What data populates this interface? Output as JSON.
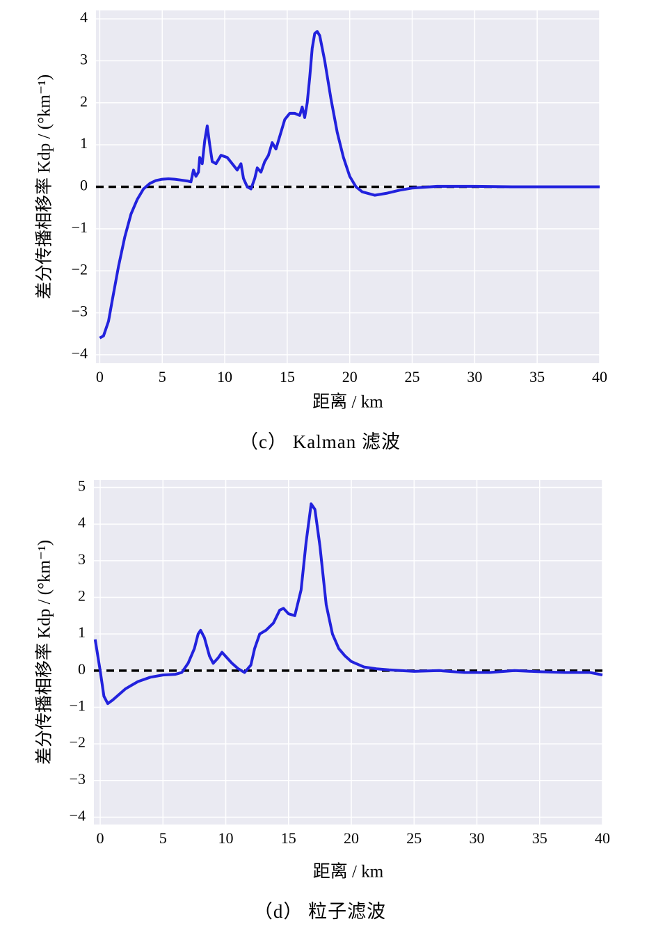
{
  "chart_data": [
    {
      "type": "line",
      "caption": "（c） Kalman 滤波",
      "xlabel": "距离 / km",
      "ylabel": "差分传播相移率 Kdp / (°km⁻¹)",
      "xlim": [
        -0.3,
        40
      ],
      "ylim": [
        -4.2,
        4.2
      ],
      "xticks": [
        0,
        5,
        10,
        15,
        20,
        25,
        30,
        35,
        40
      ],
      "yticks": [
        {
          "value": -4,
          "label": "−4"
        },
        {
          "value": -3,
          "label": "−3"
        },
        {
          "value": -2,
          "label": "−2"
        },
        {
          "value": -1,
          "label": "−1"
        },
        0,
        1,
        2,
        3,
        4
      ],
      "grid": true,
      "background": "#eaeaf2",
      "color": "#2222dd",
      "reference_line": {
        "value": 0,
        "style": "dashed",
        "color": "#000000"
      },
      "x": [
        0,
        0.3,
        0.7,
        1,
        1.5,
        2,
        2.5,
        3,
        3.5,
        4,
        4.5,
        5,
        5.5,
        6,
        6.5,
        7,
        7.3,
        7.5,
        7.7,
        7.9,
        8.0,
        8.2,
        8.4,
        8.6,
        8.8,
        9.0,
        9.3,
        9.7,
        10.2,
        10.6,
        11,
        11.3,
        11.5,
        11.8,
        12.1,
        12.4,
        12.6,
        12.9,
        13.2,
        13.5,
        13.8,
        14.1,
        14.4,
        14.8,
        15.2,
        15.6,
        16,
        16.2,
        16.4,
        16.6,
        16.8,
        17.0,
        17.2,
        17.4,
        17.6,
        18,
        18.5,
        19,
        19.5,
        20,
        20.5,
        21,
        22,
        23,
        24,
        25,
        27,
        30,
        33,
        36,
        40
      ],
      "values": [
        -3.6,
        -3.55,
        -3.2,
        -2.7,
        -1.9,
        -1.2,
        -0.65,
        -0.3,
        -0.05,
        0.08,
        0.15,
        0.18,
        0.19,
        0.18,
        0.16,
        0.14,
        0.12,
        0.4,
        0.25,
        0.35,
        0.7,
        0.55,
        1.1,
        1.45,
        1.0,
        0.6,
        0.55,
        0.75,
        0.7,
        0.55,
        0.4,
        0.55,
        0.2,
        0.0,
        -0.05,
        0.2,
        0.45,
        0.35,
        0.6,
        0.75,
        1.05,
        0.9,
        1.2,
        1.6,
        1.75,
        1.75,
        1.7,
        1.9,
        1.65,
        2.0,
        2.6,
        3.3,
        3.65,
        3.7,
        3.6,
        3.0,
        2.1,
        1.3,
        0.7,
        0.25,
        0.0,
        -0.12,
        -0.2,
        -0.15,
        -0.08,
        -0.03,
        0.01,
        0.01,
        0.0,
        0.0,
        0.0
      ]
    },
    {
      "type": "line",
      "caption": "（d） 粒子滤波",
      "xlabel": "距离 / km",
      "ylabel": "差分传播相移率 Kdp / (°km⁻¹)",
      "xlim": [
        -0.5,
        40
      ],
      "ylim": [
        -4.2,
        5.2
      ],
      "xticks": [
        0,
        5,
        10,
        15,
        20,
        25,
        30,
        35,
        40
      ],
      "yticks": [
        {
          "value": -4,
          "label": "−4"
        },
        {
          "value": -3,
          "label": "−3"
        },
        {
          "value": -2,
          "label": "−2"
        },
        {
          "value": -1,
          "label": "−1"
        },
        0,
        1,
        2,
        3,
        4,
        5
      ],
      "grid": true,
      "background": "#eaeaf2",
      "color": "#2222dd",
      "reference_line": {
        "value": 0,
        "style": "dashed",
        "color": "#000000"
      },
      "x": [
        -0.4,
        0,
        0.3,
        0.6,
        1,
        1.5,
        2,
        2.5,
        3,
        4,
        5,
        6,
        6.5,
        7,
        7.5,
        7.8,
        8.0,
        8.3,
        8.7,
        9.0,
        9.4,
        9.7,
        10.1,
        10.5,
        11,
        11.5,
        12,
        12.3,
        12.7,
        13.2,
        13.8,
        14.3,
        14.6,
        15,
        15.5,
        16,
        16.4,
        16.8,
        17.1,
        17.5,
        18,
        18.5,
        19,
        19.5,
        20,
        21,
        22,
        23,
        25,
        27,
        29,
        31,
        33,
        35,
        37,
        39,
        40
      ],
      "values": [
        0.85,
        0.0,
        -0.7,
        -0.9,
        -0.8,
        -0.65,
        -0.5,
        -0.4,
        -0.3,
        -0.18,
        -0.12,
        -0.1,
        -0.05,
        0.2,
        0.6,
        1.0,
        1.1,
        0.9,
        0.4,
        0.2,
        0.35,
        0.5,
        0.35,
        0.2,
        0.05,
        -0.05,
        0.15,
        0.6,
        1.0,
        1.1,
        1.3,
        1.65,
        1.7,
        1.55,
        1.5,
        2.2,
        3.5,
        4.55,
        4.4,
        3.4,
        1.8,
        1.0,
        0.6,
        0.4,
        0.25,
        0.1,
        0.05,
        0.02,
        -0.02,
        0.0,
        -0.05,
        -0.05,
        0.0,
        -0.03,
        -0.05,
        -0.05,
        -0.12
      ]
    }
  ]
}
